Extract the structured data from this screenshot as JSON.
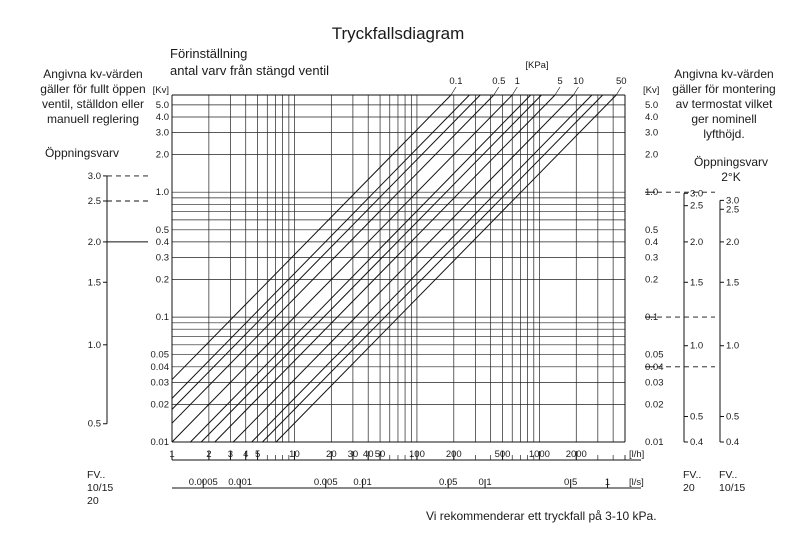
{
  "title": "Tryckfallsdiagram",
  "preset_heading": [
    "Förinställning",
    "antal varv från stängd ventil"
  ],
  "left_note": [
    "Angivna kv-värden",
    "gäller för fullt öppen",
    "ventil, ställdon eller",
    "manuell reglering"
  ],
  "left_subheading": "Öppningsvarv",
  "right_note": [
    "Angivna kv-värden",
    "gäller för montering",
    "av termostat vilket",
    "ger nominell",
    "lyfthöjd."
  ],
  "right_subheading": [
    "Öppningsvarv",
    "2°K"
  ],
  "footer_note": "Vi rekommenderar ett tryckfall på 3-10 kPa.",
  "fv_left": [
    "FV..",
    "10/15",
    "20"
  ],
  "fv_right_a": [
    "FV..",
    "20"
  ],
  "fv_right_b": [
    "FV..",
    "10/15"
  ],
  "chart_data": {
    "type": "line",
    "title": "Tryckfallsdiagram",
    "x_scale": "log",
    "y_scale": "log",
    "xlim": [
      1,
      5000
    ],
    "ylim": [
      0.01,
      6
    ],
    "x_unit": "[l/h]",
    "x2_unit": "[l/s]",
    "y_unit": "[Kv]",
    "top_unit": "[KPa]",
    "y_ticks": [
      "0.01",
      "0.02",
      "0.03",
      "0.04",
      "0.05",
      "0.1",
      "0.2",
      "0.3",
      "0.4",
      "0.5",
      "1.0",
      "2.0",
      "3.0",
      "4.0",
      "5.0"
    ],
    "y_values": [
      0.01,
      0.02,
      0.03,
      0.04,
      0.05,
      0.1,
      0.2,
      0.3,
      0.4,
      0.5,
      1,
      2,
      3,
      4,
      5
    ],
    "x_ticks": [
      "1",
      "2",
      "3",
      "4",
      "5",
      "10",
      "20",
      "30",
      "40",
      "50",
      "100",
      "200",
      "500",
      "1000",
      "2000"
    ],
    "x_values": [
      1,
      2,
      3,
      4,
      5,
      10,
      20,
      30,
      40,
      50,
      100,
      200,
      500,
      1000,
      2000
    ],
    "x2_ticks": [
      "0.0005",
      "0.001",
      "0.005",
      "0.01",
      "0.05",
      "0.1",
      "0.5",
      "1"
    ],
    "x2_values": [
      0.0005,
      0.001,
      0.005,
      0.01,
      0.05,
      0.1,
      0.5,
      1
    ],
    "pressure_labels": [
      "0.1",
      "0.5",
      "1",
      "5",
      "10",
      "50"
    ],
    "pressure_values": [
      0.1,
      0.5,
      1,
      5,
      10,
      50
    ],
    "pressure_lines": [
      0.1,
      0.2,
      0.3,
      0.5,
      1,
      2,
      3,
      5,
      10,
      20,
      30,
      50
    ],
    "left_opening": [
      {
        "label": "3.0",
        "kv": 1.35,
        "style": "dashed"
      },
      {
        "label": "2.5",
        "kv": 0.85,
        "style": "dashed"
      },
      {
        "label": "2.0",
        "kv": 0.4,
        "style": "solid"
      },
      {
        "label": "1.5",
        "kv": 0.19
      },
      {
        "label": "1.0",
        "kv": 0.06
      },
      {
        "label": "0.5",
        "kv": 0.014
      }
    ],
    "right_opening_a": [
      {
        "label": "3.0",
        "kv": 0.98
      },
      {
        "label": "2.5",
        "kv": 0.78
      },
      {
        "label": "2.0",
        "kv": 0.4
      },
      {
        "label": "1.5",
        "kv": 0.19
      },
      {
        "label": "1.0",
        "kv": 0.059
      },
      {
        "label": "0.5",
        "kv": 0.016
      },
      {
        "label": "0.4",
        "kv": 0.01
      }
    ],
    "right_opening_b": [
      {
        "label": "3.0",
        "kv": 0.86
      },
      {
        "label": "2.5",
        "kv": 0.73
      },
      {
        "label": "2.0",
        "kv": 0.4
      },
      {
        "label": "1.5",
        "kv": 0.19
      },
      {
        "label": "1.0",
        "kv": 0.059
      },
      {
        "label": "0.5",
        "kv": 0.016
      },
      {
        "label": "0.4",
        "kv": 0.01
      }
    ],
    "right_markers": [
      1.0,
      0.1,
      0.04
    ]
  }
}
